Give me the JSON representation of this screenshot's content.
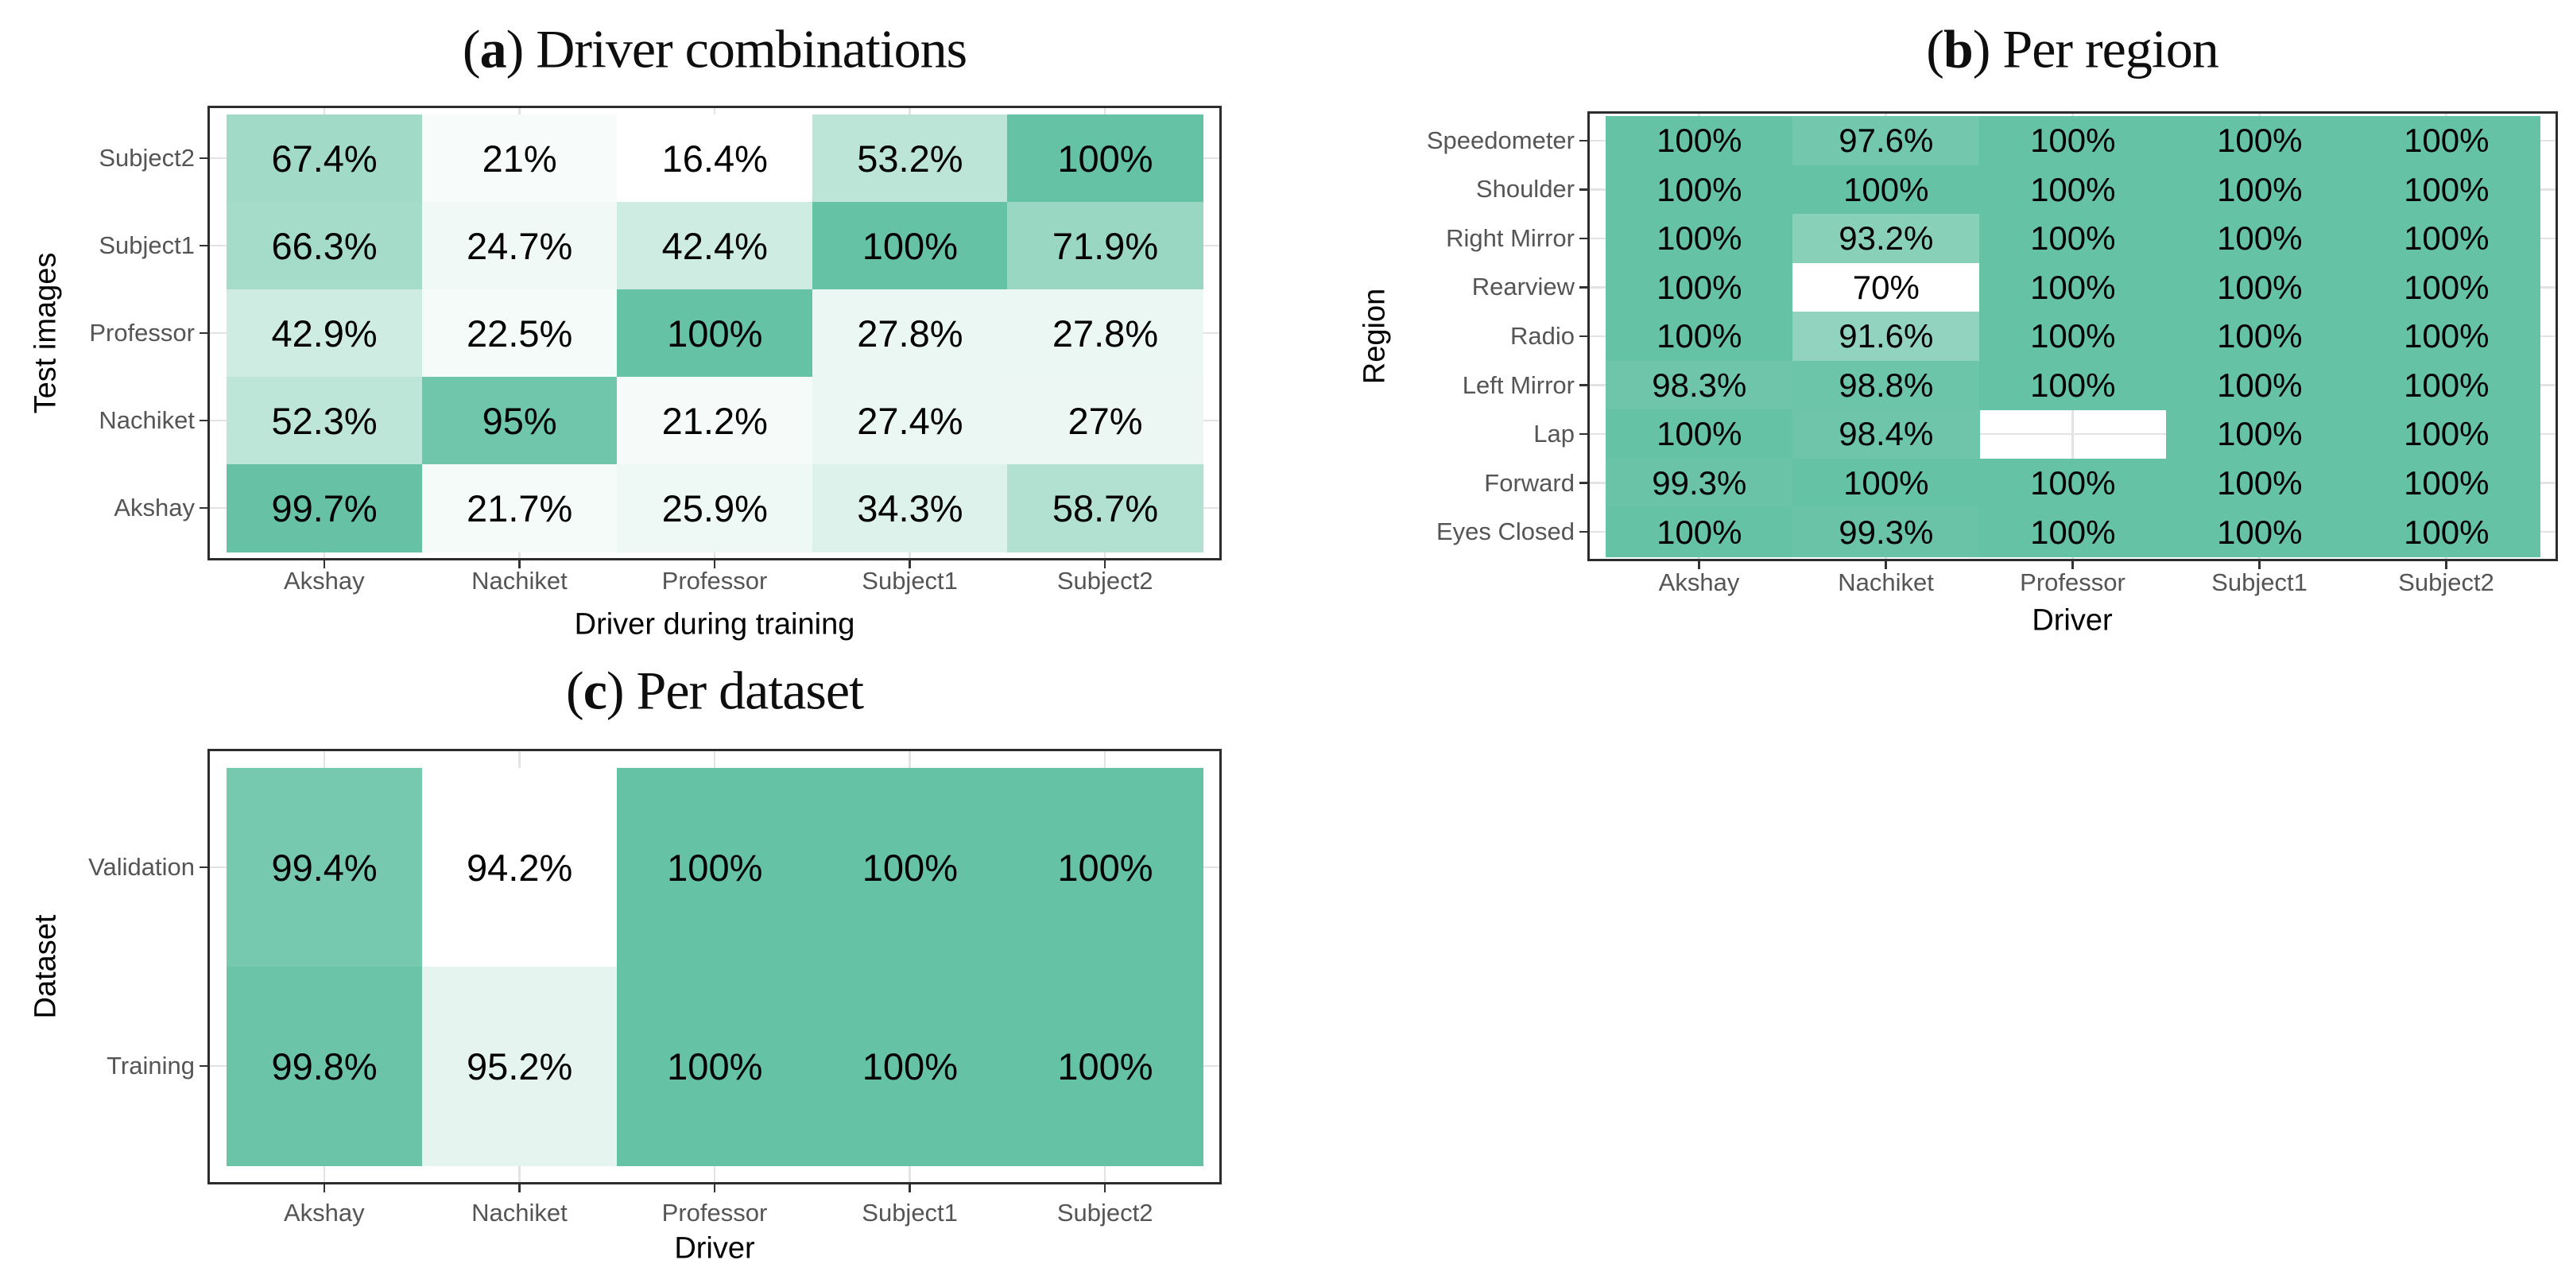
{
  "figure": {
    "background": "#ffffff",
    "style": {
      "tile_max_color": "#66c2a5",
      "tile_min_color": "#ffffff",
      "na_tile_color": "#ffffff",
      "panel_border_color": "#2d2d2d",
      "grid_line_color": "#e3e3e3",
      "tick_mark_color": "#333333",
      "tick_label_color": "#555555",
      "axis_title_color": "#000000",
      "cell_text_color": "#000000"
    }
  },
  "chart_data": [
    {
      "id": "a",
      "type": "heatmap",
      "title": {
        "prefix": "(",
        "letter": "a",
        "suffix": ") Driver combinations"
      },
      "xlabel": "Driver during training",
      "ylabel": "Test images",
      "x_categories": [
        "Akshay",
        "Nachiket",
        "Professor",
        "Subject1",
        "Subject2"
      ],
      "y_categories": [
        "Subject2",
        "Subject1",
        "Professor",
        "Nachiket",
        "Akshay"
      ],
      "values": [
        [
          67.4,
          21,
          16.4,
          53.2,
          100
        ],
        [
          66.3,
          24.7,
          42.4,
          100,
          71.9
        ],
        [
          42.9,
          22.5,
          100,
          27.8,
          27.8
        ],
        [
          52.3,
          95,
          21.2,
          27.4,
          27
        ],
        [
          99.7,
          21.7,
          25.9,
          34.3,
          58.7
        ]
      ],
      "value_labels": [
        [
          "67.4%",
          "21%",
          "16.4%",
          "53.2%",
          "100%"
        ],
        [
          "66.3%",
          "24.7%",
          "42.4%",
          "100%",
          "71.9%"
        ],
        [
          "42.9%",
          "22.5%",
          "100%",
          "27.8%",
          "27.8%"
        ],
        [
          "52.3%",
          "95%",
          "21.2%",
          "27.4%",
          "27%"
        ],
        [
          "99.7%",
          "21.7%",
          "25.9%",
          "34.3%",
          "58.7%"
        ]
      ],
      "color_scale": {
        "min_color": "#ffffff",
        "max_color": "#66c2a5",
        "normalize": "panel min to max"
      },
      "legend": "none",
      "grid": true
    },
    {
      "id": "b",
      "type": "heatmap",
      "title": {
        "prefix": "(",
        "letter": "b",
        "suffix": ") Per region"
      },
      "xlabel": "Driver",
      "ylabel": "Region",
      "x_categories": [
        "Akshay",
        "Nachiket",
        "Professor",
        "Subject1",
        "Subject2"
      ],
      "y_categories": [
        "Speedometer",
        "Shoulder",
        "Right Mirror",
        "Rearview",
        "Radio",
        "Left Mirror",
        "Lap",
        "Forward",
        "Eyes Closed"
      ],
      "values": [
        [
          100,
          97.6,
          100,
          100,
          100
        ],
        [
          100,
          100,
          100,
          100,
          100
        ],
        [
          100,
          93.2,
          100,
          100,
          100
        ],
        [
          100,
          70,
          100,
          100,
          100
        ],
        [
          100,
          91.6,
          100,
          100,
          100
        ],
        [
          98.3,
          98.8,
          100,
          100,
          100
        ],
        [
          100,
          98.4,
          null,
          100,
          100
        ],
        [
          99.3,
          100,
          100,
          100,
          100
        ],
        [
          100,
          99.3,
          100,
          100,
          100
        ]
      ],
      "value_labels": [
        [
          "100%",
          "97.6%",
          "100%",
          "100%",
          "100%"
        ],
        [
          "100%",
          "100%",
          "100%",
          "100%",
          "100%"
        ],
        [
          "100%",
          "93.2%",
          "100%",
          "100%",
          "100%"
        ],
        [
          "100%",
          "70%",
          "100%",
          "100%",
          "100%"
        ],
        [
          "100%",
          "91.6%",
          "100%",
          "100%",
          "100%"
        ],
        [
          "98.3%",
          "98.8%",
          "100%",
          "100%",
          "100%"
        ],
        [
          "100%",
          "98.4%",
          "",
          "100%",
          "100%"
        ],
        [
          "99.3%",
          "100%",
          "100%",
          "100%",
          "100%"
        ],
        [
          "100%",
          "99.3%",
          "100%",
          "100%",
          "100%"
        ]
      ],
      "color_scale": {
        "min_color": "#ffffff",
        "max_color": "#66c2a5",
        "normalize": "panel min to max"
      },
      "legend": "none",
      "grid": true
    },
    {
      "id": "c",
      "type": "heatmap",
      "title": {
        "prefix": "(",
        "letter": "c",
        "suffix": ") Per dataset"
      },
      "xlabel": "Driver",
      "ylabel": "Dataset",
      "x_categories": [
        "Akshay",
        "Nachiket",
        "Professor",
        "Subject1",
        "Subject2"
      ],
      "y_categories": [
        "Validation",
        "Training"
      ],
      "values": [
        [
          99.4,
          94.2,
          100,
          100,
          100
        ],
        [
          99.8,
          95.2,
          100,
          100,
          100
        ]
      ],
      "value_labels": [
        [
          "99.4%",
          "94.2%",
          "100%",
          "100%",
          "100%"
        ],
        [
          "99.8%",
          "95.2%",
          "100%",
          "100%",
          "100%"
        ]
      ],
      "color_scale": {
        "min_color": "#ffffff",
        "max_color": "#66c2a5",
        "normalize": "panel min to max"
      },
      "legend": "none",
      "grid": true
    }
  ]
}
